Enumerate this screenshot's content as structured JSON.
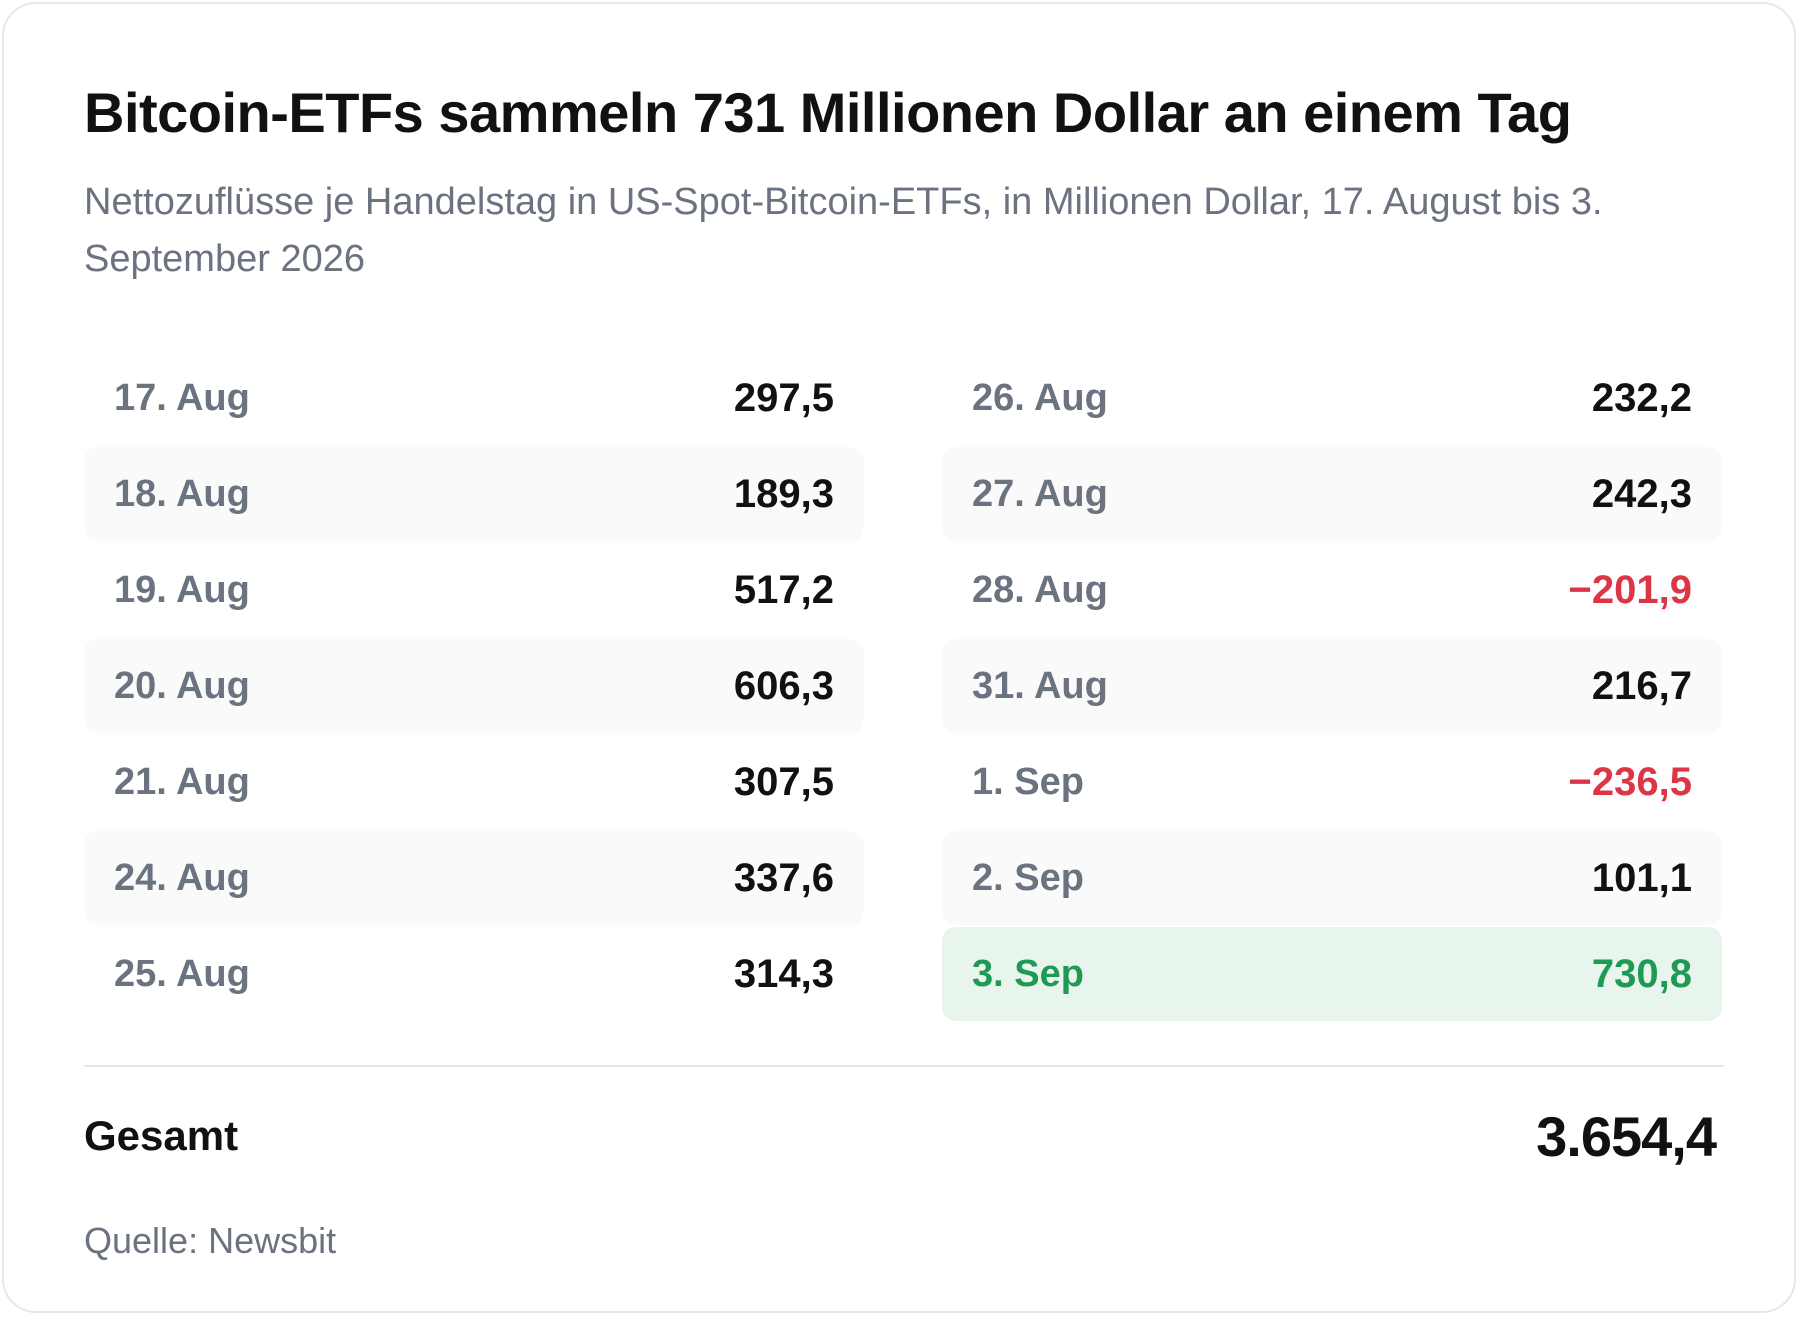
{
  "chart_data": {
    "type": "table",
    "title": "Bitcoin-ETFs sammeln 731 Millionen Dollar an einem Tag",
    "subtitle": "Nettozuflüsse je Handelstag in US-Spot-Bitcoin-ETFs, in Millionen Dollar, 17. August bis 3. September 2026",
    "columns": [
      [
        {
          "date": "17. Aug",
          "value_text": "297,5",
          "value": 297.5
        },
        {
          "date": "18. Aug",
          "value_text": "189,3",
          "value": 189.3
        },
        {
          "date": "19. Aug",
          "value_text": "517,2",
          "value": 517.2
        },
        {
          "date": "20. Aug",
          "value_text": "606,3",
          "value": 606.3
        },
        {
          "date": "21. Aug",
          "value_text": "307,5",
          "value": 307.5
        },
        {
          "date": "24. Aug",
          "value_text": "337,6",
          "value": 337.6
        },
        {
          "date": "25. Aug",
          "value_text": "314,3",
          "value": 314.3
        }
      ],
      [
        {
          "date": "26. Aug",
          "value_text": "232,2",
          "value": 232.2
        },
        {
          "date": "27. Aug",
          "value_text": "242,3",
          "value": 242.3
        },
        {
          "date": "28. Aug",
          "value_text": "−201,9",
          "value": -201.9
        },
        {
          "date": "31. Aug",
          "value_text": "216,7",
          "value": 216.7
        },
        {
          "date": "1. Sep",
          "value_text": "−236,5",
          "value": -236.5
        },
        {
          "date": "2. Sep",
          "value_text": "101,1",
          "value": 101.1
        },
        {
          "date": "3. Sep",
          "value_text": "730,8",
          "value": 730.8,
          "highlight": true
        }
      ]
    ],
    "total_label": "Gesamt",
    "total_text": "3.654,4",
    "total": 3654.4,
    "source": "Quelle: Newsbit",
    "colors": {
      "positive": "#111111",
      "negative": "#dc3545",
      "highlight_text": "#1e9a55",
      "highlight_bg": "#e8f5ec",
      "muted": "#6b7280"
    }
  }
}
